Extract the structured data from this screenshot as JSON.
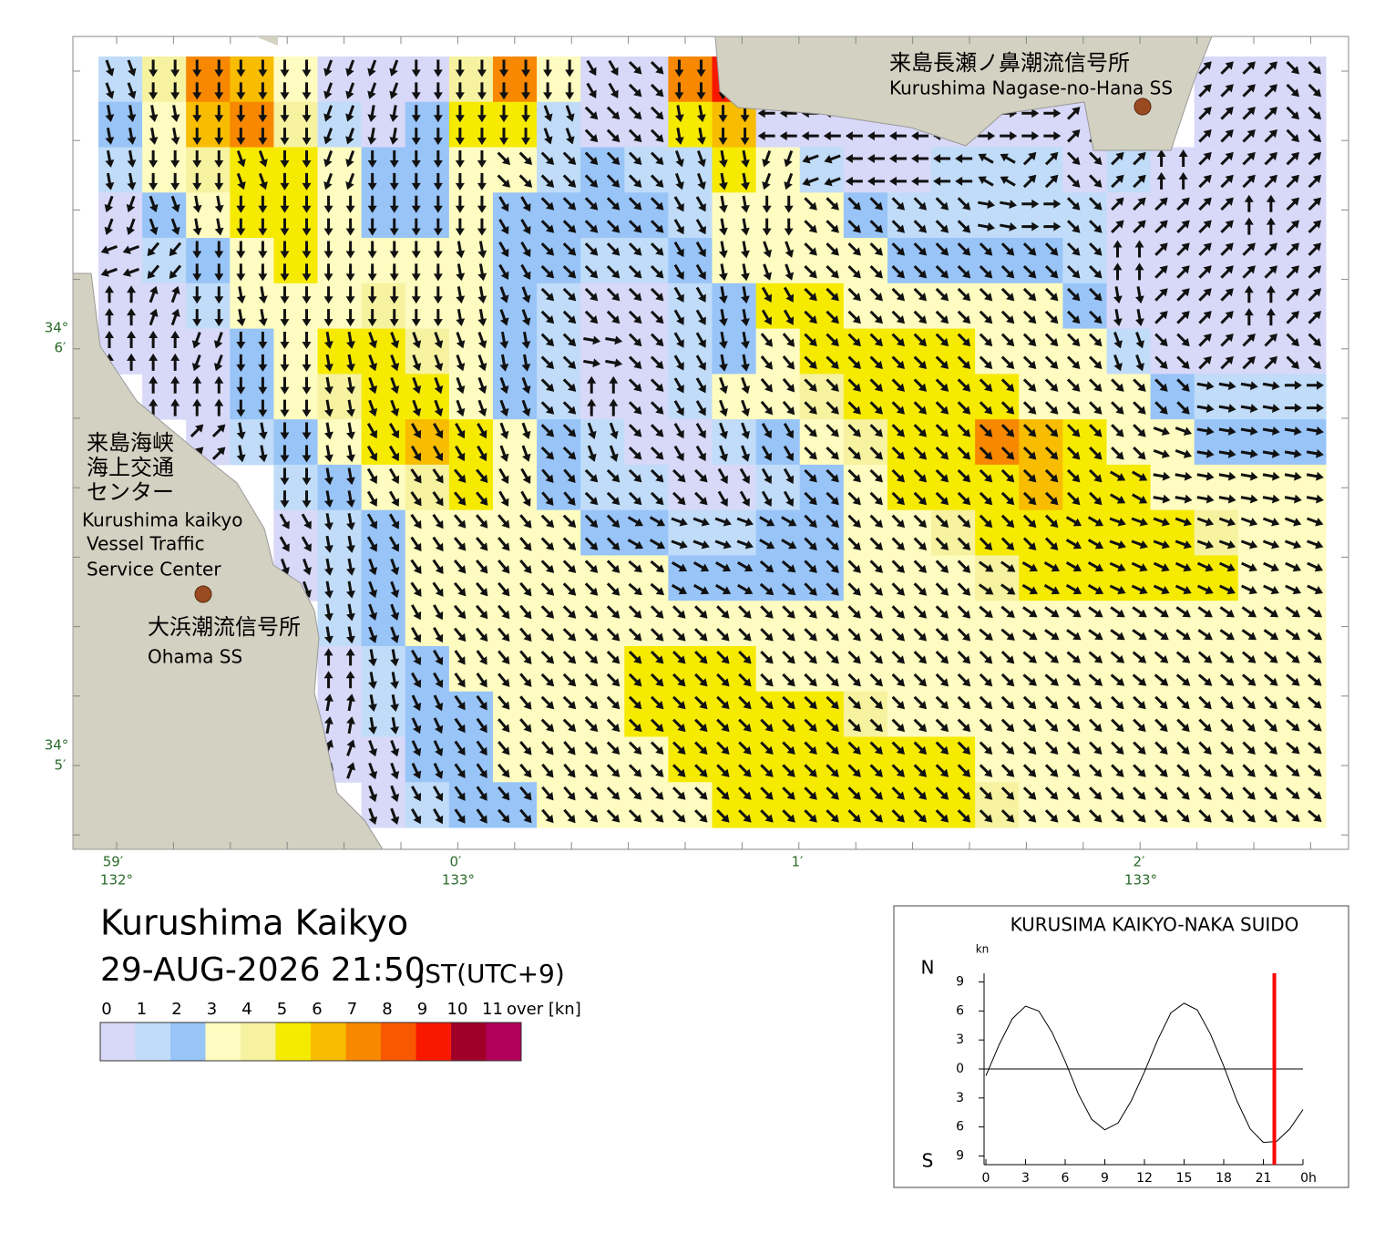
{
  "header": {
    "title": "Kurushima Kaikyo",
    "datetime": "29-AUG-2026 21:50",
    "timezone": "JST(UTC+9)"
  },
  "map": {
    "lat_labels": [
      {
        "deg": "34°",
        "min": "6′"
      },
      {
        "deg": "34°",
        "min": "5′"
      }
    ],
    "lon_labels": [
      {
        "min": "59′",
        "deg": "132°"
      },
      {
        "min": "0′",
        "deg": "133°"
      },
      {
        "min": "1′"
      },
      {
        "min": "2′",
        "deg": "133°"
      }
    ],
    "places": [
      {
        "name_ja": [
          "来島長瀬ノ鼻潮流信号所"
        ],
        "name_en": [
          "Kurushima Nagase-no-Hana SS"
        ]
      },
      {
        "name_ja": [
          "来島海峡",
          "海上交通",
          "センター"
        ],
        "name_en": [
          "Kurushima kaikyo",
          "Vessel Traffic",
          "Service Center"
        ]
      },
      {
        "name_ja": [
          "大浜潮流信号所"
        ],
        "name_en": [
          "Ohama SS"
        ]
      }
    ],
    "speed": [
      [
        1,
        4,
        7,
        6,
        3,
        0,
        0,
        0,
        4,
        7,
        3,
        0,
        0,
        7,
        9,
        null,
        null,
        null,
        null,
        null,
        null,
        null,
        null,
        null,
        null,
        0,
        0,
        0
      ],
      [
        2,
        3,
        6,
        7,
        4,
        1,
        0,
        2,
        5,
        5,
        1,
        0,
        0,
        5,
        6,
        0,
        0,
        0,
        0,
        0,
        0,
        0,
        0,
        null,
        null,
        0,
        0,
        0
      ],
      [
        1,
        3,
        4,
        5,
        5,
        3,
        2,
        2,
        3,
        3,
        1,
        2,
        1,
        1,
        5,
        3,
        1,
        0,
        0,
        1,
        1,
        1,
        0,
        1,
        0,
        0,
        0,
        0
      ],
      [
        0,
        2,
        3,
        5,
        5,
        3,
        2,
        2,
        3,
        2,
        2,
        2,
        2,
        1,
        3,
        3,
        3,
        2,
        1,
        1,
        1,
        1,
        1,
        0,
        0,
        0,
        0,
        0
      ],
      [
        0,
        1,
        2,
        3,
        5,
        3,
        3,
        3,
        3,
        2,
        2,
        1,
        1,
        2,
        3,
        3,
        3,
        3,
        2,
        2,
        2,
        2,
        1,
        0,
        0,
        0,
        0,
        0
      ],
      [
        0,
        0,
        1,
        3,
        3,
        3,
        4,
        3,
        3,
        2,
        1,
        0,
        0,
        1,
        2,
        5,
        5,
        3,
        3,
        3,
        3,
        3,
        2,
        0,
        0,
        0,
        0,
        0
      ],
      [
        0,
        0,
        0,
        2,
        3,
        5,
        5,
        4,
        3,
        2,
        1,
        0,
        0,
        1,
        2,
        3,
        5,
        5,
        5,
        5,
        3,
        3,
        3,
        1,
        0,
        0,
        0,
        0
      ],
      [
        null,
        0,
        0,
        2,
        3,
        4,
        5,
        5,
        3,
        2,
        1,
        0,
        0,
        1,
        3,
        3,
        4,
        5,
        5,
        5,
        5,
        3,
        3,
        3,
        2,
        1,
        1,
        1
      ],
      [
        null,
        null,
        0,
        1,
        2,
        3,
        5,
        6,
        5,
        3,
        2,
        1,
        0,
        0,
        1,
        2,
        3,
        4,
        5,
        5,
        7,
        6,
        5,
        3,
        3,
        2,
        2,
        2
      ],
      [
        null,
        null,
        null,
        null,
        1,
        2,
        3,
        4,
        5,
        3,
        2,
        1,
        1,
        0,
        0,
        1,
        2,
        3,
        5,
        5,
        5,
        6,
        5,
        5,
        3,
        3,
        3,
        3
      ],
      [
        null,
        null,
        null,
        null,
        0,
        1,
        2,
        3,
        3,
        3,
        3,
        2,
        2,
        1,
        1,
        2,
        2,
        3,
        3,
        4,
        5,
        5,
        5,
        5,
        5,
        4,
        3,
        3
      ],
      [
        null,
        null,
        null,
        null,
        0,
        1,
        2,
        3,
        3,
        3,
        3,
        3,
        3,
        2,
        2,
        2,
        2,
        3,
        3,
        3,
        4,
        5,
        5,
        5,
        5,
        5,
        3,
        3
      ],
      [
        null,
        null,
        null,
        null,
        null,
        1,
        2,
        3,
        3,
        3,
        3,
        3,
        3,
        3,
        3,
        3,
        3,
        3,
        3,
        3,
        3,
        3,
        3,
        3,
        3,
        3,
        3,
        3
      ],
      [
        null,
        null,
        null,
        null,
        null,
        0,
        1,
        2,
        3,
        3,
        3,
        3,
        5,
        5,
        5,
        3,
        3,
        3,
        3,
        3,
        3,
        3,
        3,
        3,
        3,
        3,
        3,
        3
      ],
      [
        null,
        null,
        null,
        null,
        null,
        0,
        1,
        2,
        2,
        3,
        3,
        3,
        5,
        5,
        5,
        5,
        5,
        4,
        3,
        3,
        3,
        3,
        3,
        3,
        3,
        3,
        3,
        3
      ],
      [
        null,
        null,
        null,
        null,
        null,
        0,
        0,
        2,
        2,
        3,
        3,
        3,
        3,
        5,
        5,
        5,
        5,
        5,
        5,
        5,
        3,
        3,
        3,
        3,
        3,
        3,
        3,
        3
      ],
      [
        null,
        null,
        null,
        null,
        null,
        null,
        0,
        1,
        2,
        2,
        3,
        3,
        3,
        3,
        5,
        5,
        5,
        5,
        5,
        5,
        4,
        3,
        3,
        3,
        3,
        3,
        3,
        3
      ]
    ],
    "direction": [
      [
        160,
        180,
        180,
        180,
        180,
        200,
        200,
        180,
        180,
        180,
        180,
        150,
        135,
        180,
        180,
        null,
        null,
        null,
        null,
        null,
        null,
        null,
        null,
        null,
        null,
        45,
        45,
        135
      ],
      [
        170,
        170,
        180,
        180,
        180,
        200,
        190,
        180,
        180,
        180,
        160,
        135,
        135,
        170,
        180,
        270,
        270,
        270,
        270,
        270,
        90,
        90,
        45,
        null,
        null,
        45,
        45,
        135
      ],
      [
        170,
        180,
        180,
        160,
        180,
        200,
        180,
        180,
        180,
        135,
        135,
        135,
        135,
        160,
        170,
        200,
        250,
        270,
        270,
        270,
        300,
        45,
        135,
        45,
        0,
        45,
        45,
        45
      ],
      [
        200,
        160,
        170,
        180,
        180,
        180,
        180,
        180,
        180,
        150,
        135,
        135,
        135,
        150,
        170,
        180,
        135,
        135,
        135,
        135,
        100,
        90,
        135,
        45,
        45,
        45,
        0,
        45
      ],
      [
        250,
        220,
        180,
        180,
        180,
        180,
        180,
        180,
        170,
        150,
        135,
        135,
        135,
        150,
        170,
        160,
        135,
        135,
        135,
        135,
        135,
        135,
        135,
        0,
        45,
        45,
        45,
        45
      ],
      [
        0,
        20,
        180,
        170,
        180,
        180,
        180,
        180,
        170,
        160,
        135,
        135,
        135,
        150,
        170,
        150,
        135,
        135,
        135,
        135,
        135,
        135,
        135,
        170,
        45,
        45,
        0,
        45
      ],
      [
        0,
        0,
        200,
        180,
        180,
        170,
        160,
        160,
        160,
        170,
        135,
        100,
        135,
        150,
        170,
        140,
        135,
        135,
        135,
        135,
        135,
        135,
        135,
        160,
        135,
        45,
        45,
        135
      ],
      [
        null,
        0,
        0,
        180,
        180,
        170,
        160,
        160,
        160,
        160,
        135,
        0,
        135,
        150,
        160,
        140,
        135,
        135,
        135,
        135,
        135,
        135,
        135,
        135,
        135,
        100,
        100,
        90
      ],
      [
        null,
        null,
        45,
        170,
        180,
        170,
        150,
        150,
        150,
        160,
        135,
        160,
        135,
        150,
        160,
        150,
        135,
        135,
        135,
        135,
        135,
        135,
        135,
        135,
        110,
        100,
        100,
        100
      ],
      [
        null,
        null,
        null,
        null,
        180,
        170,
        150,
        145,
        140,
        150,
        140,
        135,
        135,
        135,
        150,
        150,
        135,
        135,
        135,
        135,
        135,
        135,
        135,
        120,
        100,
        100,
        100,
        100
      ],
      [
        null,
        null,
        null,
        null,
        150,
        170,
        150,
        145,
        140,
        140,
        135,
        135,
        120,
        110,
        110,
        120,
        135,
        135,
        135,
        135,
        135,
        135,
        120,
        110,
        110,
        110,
        110,
        110
      ],
      [
        null,
        null,
        null,
        null,
        160,
        170,
        160,
        145,
        140,
        140,
        135,
        135,
        130,
        120,
        120,
        130,
        135,
        135,
        135,
        135,
        125,
        120,
        120,
        115,
        115,
        115,
        115,
        115
      ],
      [
        null,
        null,
        null,
        null,
        null,
        170,
        160,
        150,
        140,
        140,
        135,
        135,
        135,
        135,
        135,
        135,
        135,
        135,
        135,
        135,
        130,
        125,
        125,
        125,
        125,
        125,
        125,
        125
      ],
      [
        null,
        null,
        null,
        null,
        null,
        0,
        170,
        150,
        145,
        140,
        135,
        135,
        135,
        135,
        135,
        135,
        135,
        135,
        135,
        135,
        135,
        130,
        130,
        130,
        130,
        130,
        130,
        130
      ],
      [
        null,
        null,
        null,
        null,
        null,
        10,
        170,
        155,
        145,
        140,
        135,
        135,
        135,
        135,
        135,
        135,
        135,
        135,
        135,
        135,
        135,
        135,
        135,
        135,
        135,
        135,
        135,
        130
      ],
      [
        null,
        null,
        null,
        null,
        null,
        20,
        160,
        155,
        145,
        140,
        140,
        135,
        135,
        135,
        135,
        135,
        135,
        135,
        135,
        135,
        135,
        135,
        135,
        135,
        135,
        135,
        135,
        130
      ],
      [
        null,
        null,
        null,
        null,
        null,
        null,
        160,
        150,
        145,
        140,
        140,
        135,
        135,
        135,
        135,
        135,
        135,
        135,
        135,
        135,
        135,
        135,
        135,
        135,
        135,
        135,
        135,
        130
      ]
    ]
  },
  "legend": {
    "ticks": [
      0,
      1,
      2,
      3,
      4,
      5,
      6,
      7,
      8,
      9,
      10,
      11
    ],
    "over_label": "over [kn]",
    "colors": [
      "#d8d8f8",
      "#c0dcf8",
      "#98c4f8",
      "#fefcc0",
      "#f6f2a0",
      "#f6ea00",
      "#f8bc00",
      "#f88800",
      "#f85800",
      "#f81800",
      "#a00028",
      "#b00058"
    ]
  },
  "chart_data": {
    "type": "line",
    "title": "KURUSIMA KAIKYO-NAKA SUIDO",
    "y_unit": "kn",
    "north_label": "N",
    "south_label": "S",
    "color": "#000000",
    "x": [
      0,
      1,
      2,
      3,
      4,
      5,
      6,
      7,
      8,
      9,
      10,
      11,
      12,
      13,
      14,
      15,
      16,
      17,
      18,
      19,
      20,
      21,
      22,
      23,
      24
    ],
    "values": [
      -0.7,
      2.5,
      5.2,
      6.5,
      6.0,
      3.8,
      0.8,
      -2.6,
      -5.2,
      -6.3,
      -5.6,
      -3.3,
      -0.3,
      3.0,
      5.8,
      6.8,
      6.1,
      3.6,
      0.3,
      -3.3,
      -6.2,
      -7.6,
      -7.5,
      -6.2,
      -4.2
    ],
    "xlim": [
      0,
      24
    ],
    "ylim": [
      -9.9,
      9.9
    ],
    "xticks": [
      0,
      3,
      6,
      9,
      12,
      15,
      18,
      21,
      {
        "value": 24,
        "label": "0h"
      }
    ],
    "yticks": [
      9,
      6,
      3,
      0,
      {
        "value": -3,
        "label": "3"
      },
      {
        "value": -6,
        "label": "6"
      },
      {
        "value": -9,
        "label": "9"
      }
    ],
    "now": 21.83,
    "now_color": "#ff0000"
  }
}
